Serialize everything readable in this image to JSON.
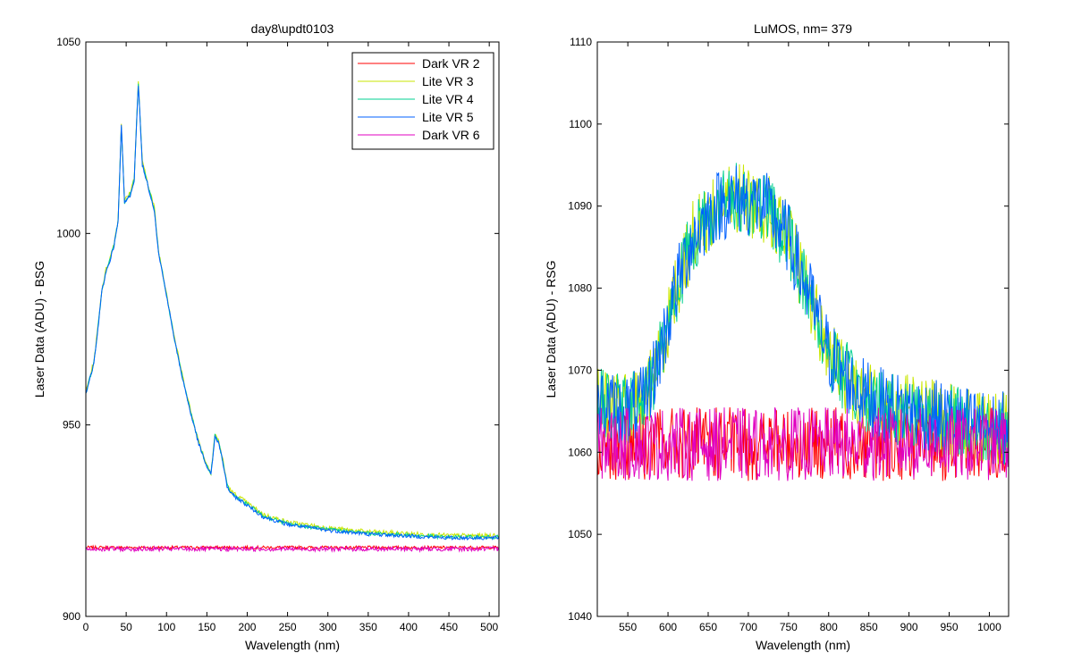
{
  "chart_data": [
    {
      "type": "line",
      "title": "day8\\updt0103",
      "xlabel": "Wavelength (nm)",
      "ylabel": "Laser Data (ADU) - BSG",
      "xlim": [
        0,
        512
      ],
      "ylim": [
        900,
        1050
      ],
      "xticks": [
        0,
        50,
        100,
        150,
        200,
        250,
        300,
        350,
        400,
        450,
        500
      ],
      "yticks": [
        900,
        950,
        1000,
        1050
      ],
      "grid": false,
      "legend_position": "top-right",
      "series": [
        {
          "name": "Dark VR 2",
          "color": "#ff0000",
          "profile": "flat",
          "base": 918,
          "noise": 0.4
        },
        {
          "name": "Lite VR 3",
          "color": "#c8e600",
          "profile": "peak",
          "offset": 0.6,
          "noise": 0.6
        },
        {
          "name": "Lite VR 4",
          "color": "#00d090",
          "profile": "peak",
          "offset": 0.2,
          "noise": 0.5
        },
        {
          "name": "Lite VR 5",
          "color": "#0060ff",
          "profile": "peak",
          "offset": 0.0,
          "noise": 0.5
        },
        {
          "name": "Dark VR 6",
          "color": "#e000c0",
          "profile": "flat",
          "base": 917.6,
          "noise": 0.6
        }
      ],
      "peak_shape": [
        [
          0,
          958
        ],
        [
          5,
          962
        ],
        [
          10,
          966
        ],
        [
          15,
          975
        ],
        [
          20,
          985
        ],
        [
          25,
          990
        ],
        [
          30,
          993
        ],
        [
          35,
          997
        ],
        [
          40,
          1003
        ],
        [
          44,
          1028
        ],
        [
          48,
          1008
        ],
        [
          55,
          1010
        ],
        [
          60,
          1014
        ],
        [
          65,
          1039
        ],
        [
          70,
          1018
        ],
        [
          75,
          1014
        ],
        [
          80,
          1010
        ],
        [
          85,
          1006
        ],
        [
          90,
          995
        ],
        [
          100,
          984
        ],
        [
          110,
          972
        ],
        [
          120,
          962
        ],
        [
          130,
          953
        ],
        [
          140,
          945
        ],
        [
          150,
          939
        ],
        [
          155,
          937
        ],
        [
          160,
          947
        ],
        [
          165,
          945
        ],
        [
          170,
          940
        ],
        [
          175,
          934
        ],
        [
          180,
          932
        ],
        [
          200,
          929
        ],
        [
          220,
          926
        ],
        [
          250,
          924
        ],
        [
          300,
          922.5
        ],
        [
          350,
          921.5
        ],
        [
          400,
          921
        ],
        [
          450,
          920.5
        ],
        [
          512,
          920.5
        ]
      ]
    },
    {
      "type": "line",
      "title": "LuMOS, nm= 379",
      "xlabel": "Wavelength (nm)",
      "ylabel": "Laser Data (ADU) - RSG",
      "xlim": [
        512,
        1024
      ],
      "ylim": [
        1040,
        1110
      ],
      "xticks": [
        550,
        600,
        650,
        700,
        750,
        800,
        850,
        900,
        950,
        1000
      ],
      "yticks": [
        1040,
        1050,
        1060,
        1070,
        1080,
        1090,
        1100,
        1110
      ],
      "grid": false,
      "series": [
        {
          "color": "#ff0000",
          "profile": "flat",
          "base": 1061,
          "noise": 4.5
        },
        {
          "color": "#c8e600",
          "profile": "bump",
          "noise": 4.5
        },
        {
          "color": "#00d090",
          "profile": "bump",
          "noise": 4.5
        },
        {
          "color": "#0060ff",
          "profile": "bump",
          "noise": 4.5
        },
        {
          "color": "#e000c0",
          "profile": "flat",
          "base": 1061,
          "noise": 4.5
        }
      ],
      "bump_shape": [
        [
          512,
          1066
        ],
        [
          540,
          1065
        ],
        [
          570,
          1066
        ],
        [
          590,
          1072
        ],
        [
          610,
          1080
        ],
        [
          630,
          1086
        ],
        [
          660,
          1090
        ],
        [
          690,
          1091
        ],
        [
          720,
          1090
        ],
        [
          750,
          1086
        ],
        [
          780,
          1078
        ],
        [
          800,
          1072
        ],
        [
          830,
          1068
        ],
        [
          860,
          1066
        ],
        [
          900,
          1065
        ],
        [
          950,
          1064
        ],
        [
          1000,
          1063
        ],
        [
          1024,
          1063
        ]
      ]
    }
  ]
}
